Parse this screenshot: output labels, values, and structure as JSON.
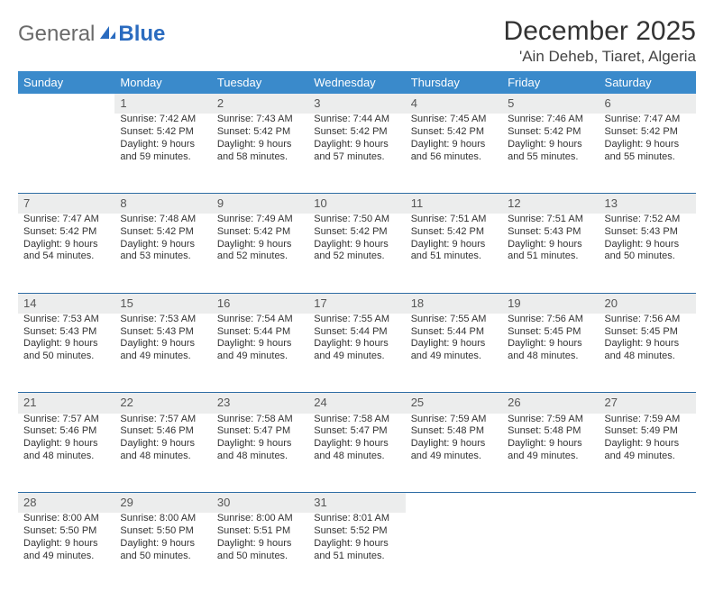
{
  "logo": {
    "general": "General",
    "blue": "Blue"
  },
  "title": "December 2025",
  "location": "'Ain Deheb, Tiaret, Algeria",
  "colors": {
    "header_bg": "#3a8acb",
    "row_rule": "#2e6da4",
    "daynum_bg": "#eceded",
    "text": "#333333"
  },
  "columns": [
    "Sunday",
    "Monday",
    "Tuesday",
    "Wednesday",
    "Thursday",
    "Friday",
    "Saturday"
  ],
  "weeks": [
    [
      null,
      {
        "n": "1",
        "sr": "7:42 AM",
        "ss": "5:42 PM",
        "dl": "9 hours and 59 minutes."
      },
      {
        "n": "2",
        "sr": "7:43 AM",
        "ss": "5:42 PM",
        "dl": "9 hours and 58 minutes."
      },
      {
        "n": "3",
        "sr": "7:44 AM",
        "ss": "5:42 PM",
        "dl": "9 hours and 57 minutes."
      },
      {
        "n": "4",
        "sr": "7:45 AM",
        "ss": "5:42 PM",
        "dl": "9 hours and 56 minutes."
      },
      {
        "n": "5",
        "sr": "7:46 AM",
        "ss": "5:42 PM",
        "dl": "9 hours and 55 minutes."
      },
      {
        "n": "6",
        "sr": "7:47 AM",
        "ss": "5:42 PM",
        "dl": "9 hours and 55 minutes."
      }
    ],
    [
      {
        "n": "7",
        "sr": "7:47 AM",
        "ss": "5:42 PM",
        "dl": "9 hours and 54 minutes."
      },
      {
        "n": "8",
        "sr": "7:48 AM",
        "ss": "5:42 PM",
        "dl": "9 hours and 53 minutes."
      },
      {
        "n": "9",
        "sr": "7:49 AM",
        "ss": "5:42 PM",
        "dl": "9 hours and 52 minutes."
      },
      {
        "n": "10",
        "sr": "7:50 AM",
        "ss": "5:42 PM",
        "dl": "9 hours and 52 minutes."
      },
      {
        "n": "11",
        "sr": "7:51 AM",
        "ss": "5:42 PM",
        "dl": "9 hours and 51 minutes."
      },
      {
        "n": "12",
        "sr": "7:51 AM",
        "ss": "5:43 PM",
        "dl": "9 hours and 51 minutes."
      },
      {
        "n": "13",
        "sr": "7:52 AM",
        "ss": "5:43 PM",
        "dl": "9 hours and 50 minutes."
      }
    ],
    [
      {
        "n": "14",
        "sr": "7:53 AM",
        "ss": "5:43 PM",
        "dl": "9 hours and 50 minutes."
      },
      {
        "n": "15",
        "sr": "7:53 AM",
        "ss": "5:43 PM",
        "dl": "9 hours and 49 minutes."
      },
      {
        "n": "16",
        "sr": "7:54 AM",
        "ss": "5:44 PM",
        "dl": "9 hours and 49 minutes."
      },
      {
        "n": "17",
        "sr": "7:55 AM",
        "ss": "5:44 PM",
        "dl": "9 hours and 49 minutes."
      },
      {
        "n": "18",
        "sr": "7:55 AM",
        "ss": "5:44 PM",
        "dl": "9 hours and 49 minutes."
      },
      {
        "n": "19",
        "sr": "7:56 AM",
        "ss": "5:45 PM",
        "dl": "9 hours and 48 minutes."
      },
      {
        "n": "20",
        "sr": "7:56 AM",
        "ss": "5:45 PM",
        "dl": "9 hours and 48 minutes."
      }
    ],
    [
      {
        "n": "21",
        "sr": "7:57 AM",
        "ss": "5:46 PM",
        "dl": "9 hours and 48 minutes."
      },
      {
        "n": "22",
        "sr": "7:57 AM",
        "ss": "5:46 PM",
        "dl": "9 hours and 48 minutes."
      },
      {
        "n": "23",
        "sr": "7:58 AM",
        "ss": "5:47 PM",
        "dl": "9 hours and 48 minutes."
      },
      {
        "n": "24",
        "sr": "7:58 AM",
        "ss": "5:47 PM",
        "dl": "9 hours and 48 minutes."
      },
      {
        "n": "25",
        "sr": "7:59 AM",
        "ss": "5:48 PM",
        "dl": "9 hours and 49 minutes."
      },
      {
        "n": "26",
        "sr": "7:59 AM",
        "ss": "5:48 PM",
        "dl": "9 hours and 49 minutes."
      },
      {
        "n": "27",
        "sr": "7:59 AM",
        "ss": "5:49 PM",
        "dl": "9 hours and 49 minutes."
      }
    ],
    [
      {
        "n": "28",
        "sr": "8:00 AM",
        "ss": "5:50 PM",
        "dl": "9 hours and 49 minutes."
      },
      {
        "n": "29",
        "sr": "8:00 AM",
        "ss": "5:50 PM",
        "dl": "9 hours and 50 minutes."
      },
      {
        "n": "30",
        "sr": "8:00 AM",
        "ss": "5:51 PM",
        "dl": "9 hours and 50 minutes."
      },
      {
        "n": "31",
        "sr": "8:01 AM",
        "ss": "5:52 PM",
        "dl": "9 hours and 51 minutes."
      },
      null,
      null,
      null
    ]
  ],
  "labels": {
    "sunrise": "Sunrise:",
    "sunset": "Sunset:",
    "daylight": "Daylight:"
  }
}
